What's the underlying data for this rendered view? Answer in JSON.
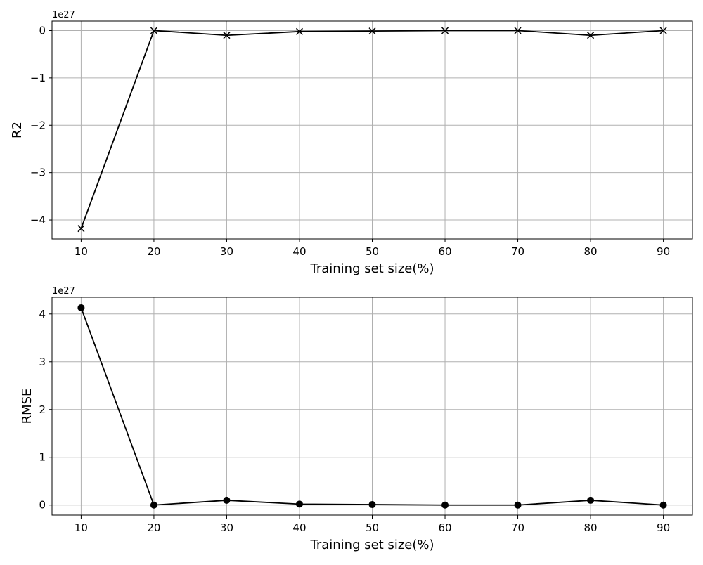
{
  "chart_data": [
    {
      "type": "line",
      "xlabel": "Training set size(%)",
      "ylabel": "R2",
      "y_offset_label": "1e27",
      "x": [
        10,
        20,
        30,
        40,
        50,
        60,
        70,
        80,
        90
      ],
      "x_ticks": [
        10,
        20,
        30,
        40,
        50,
        60,
        70,
        80,
        90
      ],
      "xlim": [
        6,
        94
      ],
      "y_ticks": [
        0,
        -1,
        -2,
        -3,
        -4
      ],
      "y_tick_labels": [
        "0",
        "−1",
        "−2",
        "−3",
        "−4"
      ],
      "ylim": [
        -4.4,
        0.2
      ],
      "grid": true,
      "marker": "x",
      "color": "#000000",
      "series": [
        {
          "values": [
            -4.18,
            0.0,
            -0.1,
            -0.02,
            -0.01,
            0.0,
            0.0,
            -0.1,
            0.0
          ]
        }
      ]
    },
    {
      "type": "line",
      "xlabel": "Training set size(%)",
      "ylabel": "RMSE",
      "y_offset_label": "1e27",
      "x": [
        10,
        20,
        30,
        40,
        50,
        60,
        70,
        80,
        90
      ],
      "x_ticks": [
        10,
        20,
        30,
        40,
        50,
        60,
        70,
        80,
        90
      ],
      "xlim": [
        6,
        94
      ],
      "y_ticks": [
        0,
        1,
        2,
        3,
        4
      ],
      "y_tick_labels": [
        "0",
        "1",
        "2",
        "3",
        "4"
      ],
      "ylim": [
        -0.21,
        4.35
      ],
      "grid": true,
      "marker": "circle",
      "color": "#000000",
      "series": [
        {
          "values": [
            4.13,
            0.0,
            0.1,
            0.02,
            0.01,
            0.0,
            0.0,
            0.1,
            0.0
          ]
        }
      ]
    }
  ]
}
